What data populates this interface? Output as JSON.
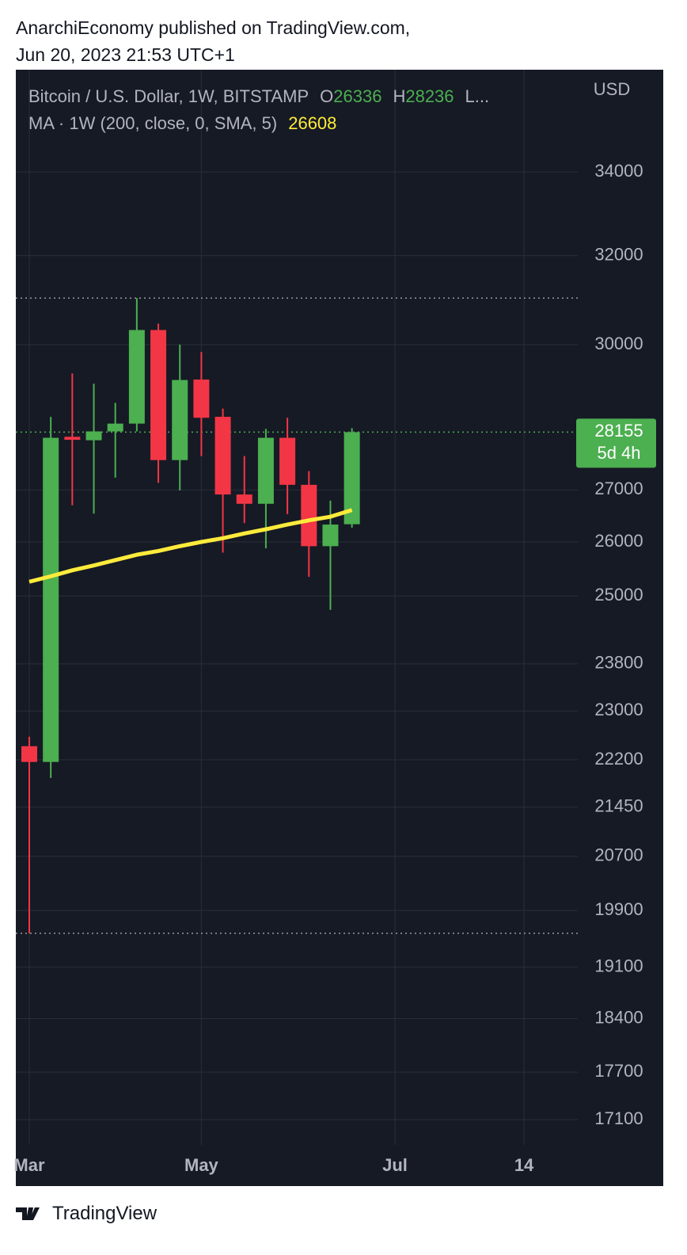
{
  "header": {
    "publisher": "AnarchiEconomy published on TradingView.com,",
    "date": "Jun 20, 2023 21:53 UTC+1"
  },
  "footer": {
    "brand": "TradingView"
  },
  "chart_data": {
    "type": "candlestick",
    "legend": {
      "symbol": "Bitcoin / U.S. Dollar, 1W, BITSTAMP",
      "open_label": "O",
      "open": 26336,
      "high_label": "H",
      "high": 28236,
      "more": "L..."
    },
    "currency": "USD",
    "log_scale": true,
    "grid": true,
    "up_color": "#4caf50",
    "down_color": "#f23645",
    "x": [
      0,
      1,
      2,
      3,
      4,
      5,
      6,
      7,
      8,
      9,
      10,
      11,
      12,
      13,
      14,
      15
    ],
    "open": [
      22420,
      22165,
      28060,
      27990,
      28170,
      28330,
      30320,
      27590,
      29250,
      28470,
      26910,
      26730,
      28040,
      27100,
      25920,
      26336
    ],
    "high": [
      22574,
      28470,
      29380,
      29160,
      28760,
      31030,
      30460,
      30000,
      29840,
      28640,
      27670,
      28220,
      28450,
      27370,
      26790,
      28236
    ],
    "low": [
      19574,
      21910,
      26700,
      26540,
      27240,
      28170,
      27140,
      26990,
      27670,
      25800,
      26360,
      25880,
      26530,
      25350,
      24750,
      26270
    ],
    "close": [
      22165,
      28040,
      28000,
      28170,
      28330,
      30320,
      27590,
      29240,
      28450,
      26910,
      26730,
      28040,
      27100,
      25920,
      26330,
      28155
    ],
    "ma": {
      "label": "MA · 1W (200, close, 0, SMA, 5)",
      "last": 26608,
      "color": "#ffeb3b",
      "values": [
        25260,
        25360,
        25470,
        25560,
        25660,
        25760,
        25830,
        25920,
        26000,
        26070,
        26160,
        26240,
        26330,
        26410,
        26480,
        26608
      ]
    },
    "last_price": 28155,
    "countdown": "5d 4h",
    "period_high": 31030,
    "period_low": 19574,
    "xlim": [
      -0.625,
      25.5
    ],
    "xticks": [
      {
        "value": 0,
        "label": "Mar"
      },
      {
        "value": 8,
        "label": "May"
      },
      {
        "value": 17,
        "label": "Jul"
      },
      {
        "value": 23,
        "label": "14"
      }
    ],
    "ylim": [
      16790,
      36620
    ],
    "yticks": [
      34000,
      32000,
      30000,
      27000,
      26000,
      25000,
      23800,
      23000,
      22200,
      21450,
      20700,
      19900,
      19100,
      18400,
      17700,
      17100
    ]
  }
}
